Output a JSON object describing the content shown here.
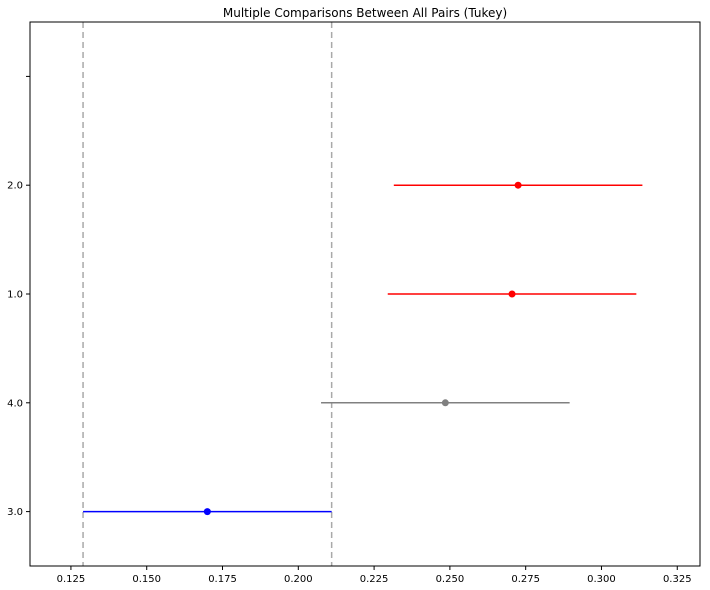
{
  "chart_data": {
    "type": "scatter",
    "subtype": "interval-plot",
    "title": "Multiple Comparisons Between All Pairs (Tukey)",
    "xlabel": "",
    "ylabel": "",
    "xlim": [
      0.1115,
      0.3325
    ],
    "x_ticks": [
      0.125,
      0.15,
      0.175,
      0.2,
      0.225,
      0.25,
      0.275,
      0.3,
      0.325
    ],
    "x_tick_labels": [
      "0.125",
      "0.150",
      "0.175",
      "0.200",
      "0.225",
      "0.250",
      "0.275",
      "0.300",
      "0.325"
    ],
    "ylim": [
      -0.5,
      4.5
    ],
    "categories": [
      "3.0",
      "4.0",
      "1.0",
      "2.0"
    ],
    "grid": false,
    "reference_lines": [
      0.129,
      0.211
    ],
    "groups": [
      {
        "label": "2.0",
        "mean": 0.2725,
        "lower": 0.2315,
        "upper": 0.3135,
        "color": "#ff0000"
      },
      {
        "label": "1.0",
        "mean": 0.2705,
        "lower": 0.2295,
        "upper": 0.3115,
        "color": "#ff0000"
      },
      {
        "label": "4.0",
        "mean": 0.2485,
        "lower": 0.2075,
        "upper": 0.2895,
        "color": "#808080"
      },
      {
        "label": "3.0",
        "mean": 0.17,
        "lower": 0.129,
        "upper": 0.211,
        "color": "#0000ff"
      }
    ]
  }
}
